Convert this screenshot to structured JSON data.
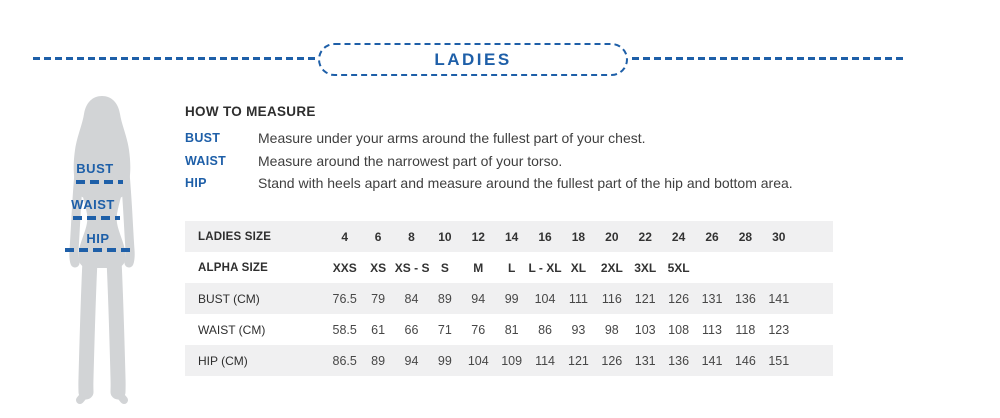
{
  "header": {
    "title": "LADIES"
  },
  "figure": {
    "labels": [
      {
        "name": "BUST"
      },
      {
        "name": "WAIST"
      },
      {
        "name": "HIP"
      }
    ]
  },
  "how_to_measure": {
    "title": "HOW TO MEASURE",
    "items": [
      {
        "label": "BUST",
        "text": "Measure under your arms around the fullest part of your chest."
      },
      {
        "label": "WAIST",
        "text": "Measure around the narrowest part of your torso."
      },
      {
        "label": "HIP",
        "text": "Stand with heels apart and measure around the fullest part of the hip and bottom area."
      }
    ]
  },
  "size_table": {
    "rows": [
      {
        "label": "LADIES SIZE",
        "bold": true,
        "values": [
          "4",
          "6",
          "8",
          "10",
          "12",
          "14",
          "16",
          "18",
          "20",
          "22",
          "24",
          "26",
          "28",
          "30"
        ]
      },
      {
        "label": "ALPHA SIZE",
        "bold": true,
        "values": [
          "XXS",
          "XS",
          "XS - S",
          "S",
          "M",
          "L",
          "L - XL",
          "XL",
          "2XL",
          "3XL",
          "5XL"
        ]
      },
      {
        "label": "BUST (CM)",
        "bold": false,
        "values": [
          "76.5",
          "79",
          "84",
          "89",
          "94",
          "99",
          "104",
          "111",
          "116",
          "121",
          "126",
          "131",
          "136",
          "141"
        ]
      },
      {
        "label": "WAIST (CM)",
        "bold": false,
        "values": [
          "58.5",
          "61",
          "66",
          "71",
          "76",
          "81",
          "86",
          "93",
          "98",
          "103",
          "108",
          "113",
          "118",
          "123"
        ]
      },
      {
        "label": "HIP (CM)",
        "bold": false,
        "values": [
          "86.5",
          "89",
          "94",
          "99",
          "104",
          "109",
          "114",
          "121",
          "126",
          "131",
          "136",
          "141",
          "146",
          "151"
        ]
      }
    ]
  },
  "colors": {
    "accent": "#1e5fa8",
    "row_alt": "#f0f0f1",
    "silhouette": "#d2d4d6"
  }
}
